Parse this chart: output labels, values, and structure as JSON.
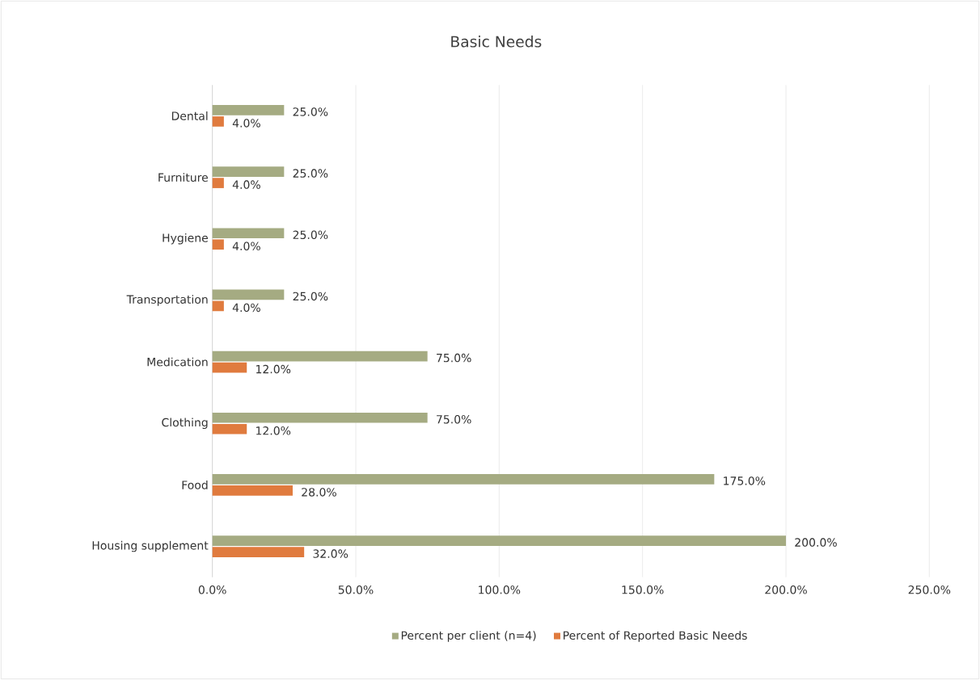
{
  "chart_data": {
    "type": "bar",
    "orientation": "horizontal",
    "title": "Basic Needs",
    "categories": [
      "Dental",
      "Furniture",
      "Hygiene",
      "Transportation",
      "Medication",
      "Clothing",
      "Food",
      "Housing supplement"
    ],
    "series": [
      {
        "name": "Percent per client (n=4)",
        "color": "#a5ab82",
        "values": [
          25,
          25,
          25,
          25,
          75,
          75,
          175,
          200
        ],
        "value_labels": [
          "25.0%",
          "25.0%",
          "25.0%",
          "25.0%",
          "75.0%",
          "75.0%",
          "175.0%",
          "200.0%"
        ]
      },
      {
        "name": "Percent of Reported Basic Needs",
        "color": "#e07b3e",
        "values": [
          4,
          4,
          4,
          4,
          12,
          12,
          28,
          32
        ],
        "value_labels": [
          "4.0%",
          "4.0%",
          "4.0%",
          "4.0%",
          "12.0%",
          "12.0%",
          "28.0%",
          "32.0%"
        ]
      }
    ],
    "xlim": [
      0,
      250
    ],
    "xticks": [
      {
        "value": 0,
        "label": "0.0%"
      },
      {
        "value": 50,
        "label": "50.0%"
      },
      {
        "value": 100,
        "label": "100.0%"
      },
      {
        "value": 150,
        "label": "150.0%"
      },
      {
        "value": 200,
        "label": "200.0%"
      },
      {
        "value": 250,
        "label": "250.0%"
      }
    ],
    "grid": "x",
    "legend": "bottom"
  }
}
